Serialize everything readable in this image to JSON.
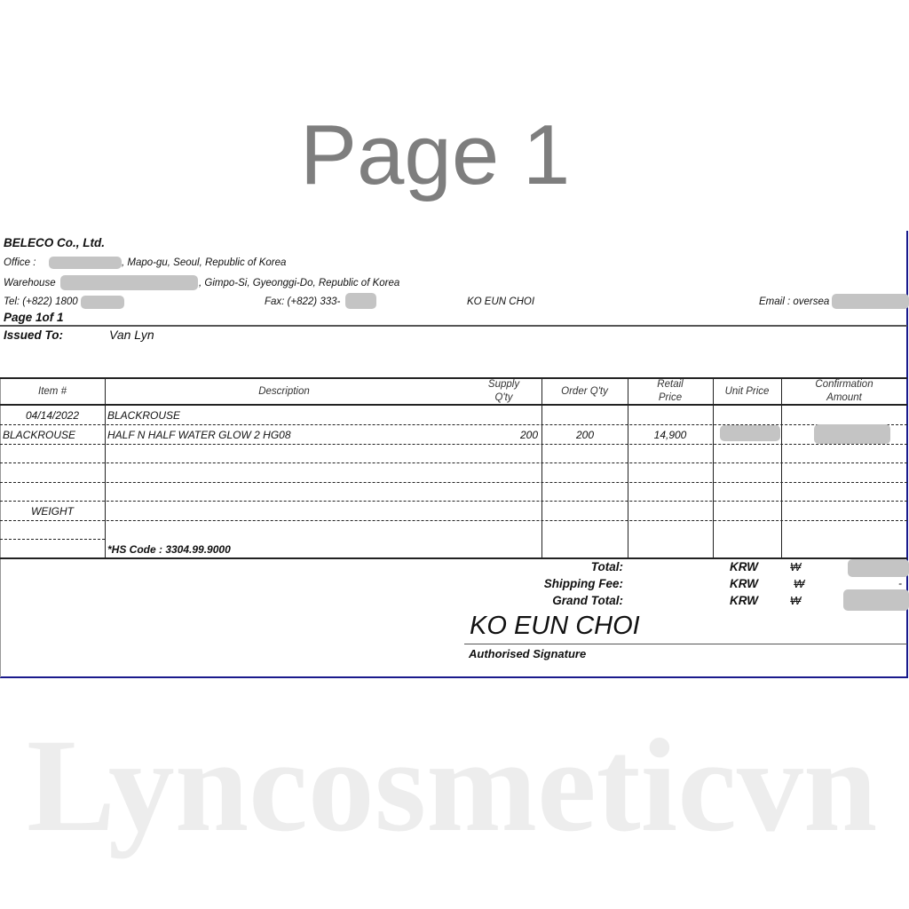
{
  "company": {
    "name": "BELECO Co., Ltd.",
    "office_prefix": "Office :",
    "office_suffix": ", Mapo-gu, Seoul, Republic of Korea",
    "warehouse_prefix": "Warehouse",
    "warehouse_suffix": ", Gimpo-Si, Gyeonggi-Do, Republic of Korea",
    "tel": "Tel: (+822) 1800",
    "fax": "Fax: (+822) 333-",
    "contact": "KO EUN CHOI",
    "email": "Email : oversea"
  },
  "page_label": "Page 1of 1",
  "issued_to": {
    "label": "Issued To:",
    "value": "Van Lyn"
  },
  "watermarks": {
    "page": "Page 1",
    "brand": "Lyncosmeticvn"
  },
  "table": {
    "headers": {
      "item": "Item #",
      "description": "Description",
      "supply_qty": "Supply Q'ty",
      "order_qty": "Order Q'ty",
      "retail_price": "Retail Price",
      "unit_price": "Unit Price",
      "confirmation_amount": "Confirmation Amount"
    },
    "rows": [
      {
        "item": "04/14/2022",
        "description": "BLACKROUSE"
      },
      {
        "item": "BLACKROUSE",
        "description": "HALF N HALF WATER GLOW 2 HG08",
        "supply_qty": "200",
        "order_qty": "200",
        "retail_price": "14,900"
      }
    ],
    "weight_label": "WEIGHT",
    "hs_code": "*HS Code : 3304.99.9000"
  },
  "totals": {
    "total_label": "Total:",
    "shipping_label": "Shipping Fee:",
    "grand_label": "Grand Total:",
    "currency": "KRW",
    "symbol": "₩",
    "shipping_value": "-"
  },
  "signature": {
    "name": "KO EUN CHOI",
    "label": "Authorised Signature"
  },
  "colors": {
    "border": "#1a1a8c",
    "redaction": "#c4c4c4"
  }
}
